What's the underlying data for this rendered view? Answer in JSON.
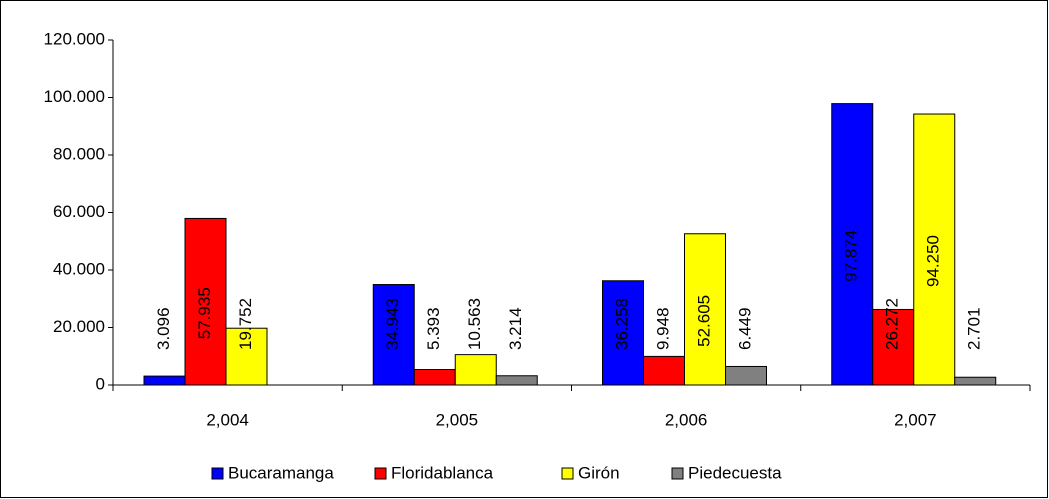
{
  "chart_data": {
    "type": "bar",
    "categories": [
      "2,004",
      "2,005",
      "2,006",
      "2,007"
    ],
    "series": [
      {
        "name": "Bucaramanga",
        "color": "#0000ff",
        "values": [
          3096,
          34943,
          36258,
          97874
        ],
        "value_labels": [
          "3.096",
          "34.943",
          "36.258",
          "97.874"
        ]
      },
      {
        "name": "Floridablanca",
        "color": "#ff0000",
        "values": [
          57935,
          5393,
          9948,
          26272
        ],
        "value_labels": [
          "57.935",
          "5.393",
          "9.948",
          "26.272"
        ]
      },
      {
        "name": "Girón",
        "color": "#ffff00",
        "values": [
          19752,
          10563,
          52605,
          94250
        ],
        "value_labels": [
          "19.752",
          "10.563",
          "52.605",
          "94.250"
        ]
      },
      {
        "name": "Piedecuesta",
        "color": "#808080",
        "values": [
          null,
          3214,
          6449,
          2701
        ],
        "value_labels": [
          null,
          "3.214",
          "6.449",
          "2.701"
        ]
      }
    ],
    "ylim": [
      0,
      120000
    ],
    "yticks": [
      {
        "value": 0,
        "label": "0"
      },
      {
        "value": 20000,
        "label": "20.000"
      },
      {
        "value": 40000,
        "label": "40.000"
      },
      {
        "value": 60000,
        "label": "60.000"
      },
      {
        "value": 80000,
        "label": "80.000"
      },
      {
        "value": 100000,
        "label": "100.000"
      },
      {
        "value": 120000,
        "label": "120.000"
      }
    ],
    "legend": "bottom"
  }
}
